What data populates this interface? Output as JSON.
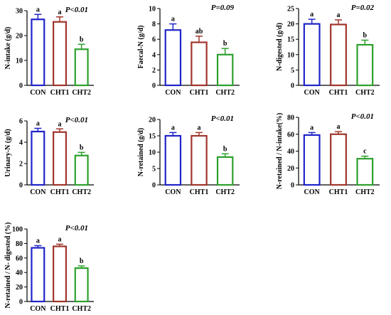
{
  "colors": {
    "CON": "#1f24c8",
    "CHT1": "#a0352b",
    "CHT2": "#2ca02c",
    "axis": "#000000"
  },
  "chart_data": [
    {
      "type": "bar",
      "ylabel": "N-intake (g/d)",
      "pvalue": "P<0.01",
      "categories": [
        "CON",
        "CHT1",
        "CHT2"
      ],
      "values": [
        26.5,
        25.5,
        14.5
      ],
      "errors": [
        2.0,
        2.0,
        2.0
      ],
      "letters": [
        "a",
        "a",
        "b"
      ],
      "ylim": [
        0,
        30
      ],
      "yticks": [
        0,
        10,
        20,
        30
      ]
    },
    {
      "type": "bar",
      "ylabel": "Faecal-N (g/d)",
      "pvalue": "P=0.09",
      "categories": [
        "CON",
        "CHT1",
        "CHT2"
      ],
      "values": [
        7.2,
        5.6,
        4.0
      ],
      "errors": [
        0.8,
        0.8,
        0.8
      ],
      "letters": [
        "a",
        "ab",
        "b"
      ],
      "ylim": [
        0,
        10
      ],
      "yticks": [
        0,
        2,
        4,
        6,
        8,
        10
      ]
    },
    {
      "type": "bar",
      "ylabel": "N-digested (g/d)",
      "pvalue": "P=0.02",
      "categories": [
        "CON",
        "CHT1",
        "CHT2"
      ],
      "values": [
        20.0,
        19.8,
        13.2
      ],
      "errors": [
        1.5,
        1.5,
        1.5
      ],
      "letters": [
        "a",
        "a",
        "b"
      ],
      "ylim": [
        0,
        25
      ],
      "yticks": [
        0,
        5,
        10,
        15,
        20,
        25
      ]
    },
    {
      "type": "bar",
      "ylabel": "Urinary-N (g/d)",
      "pvalue": "P<0.01",
      "categories": [
        "CON",
        "CHT1",
        "CHT2"
      ],
      "values": [
        5.0,
        4.95,
        2.75
      ],
      "errors": [
        0.3,
        0.3,
        0.3
      ],
      "letters": [
        "a",
        "a",
        "b"
      ],
      "ylim": [
        0,
        6
      ],
      "yticks": [
        0,
        2,
        4,
        6
      ]
    },
    {
      "type": "bar",
      "ylabel": "N-retained (g/d)",
      "pvalue": "P<0.01",
      "categories": [
        "CON",
        "CHT1",
        "CHT2"
      ],
      "values": [
        15.0,
        15.0,
        8.5
      ],
      "errors": [
        1.0,
        1.0,
        1.0
      ],
      "letters": [
        "a",
        "a",
        "b"
      ],
      "ylim": [
        0,
        20
      ],
      "yticks": [
        0,
        5,
        10,
        15,
        20
      ]
    },
    {
      "type": "bar",
      "ylabel": "N-retained / N-intake(%)",
      "pvalue": "P<0.01",
      "categories": [
        "CON",
        "CHT1",
        "CHT2"
      ],
      "values": [
        59,
        60,
        31
      ],
      "errors": [
        3,
        3,
        3
      ],
      "letters": [
        "a",
        "a",
        "c"
      ],
      "ylim": [
        0,
        80
      ],
      "yticks": [
        0,
        20,
        40,
        60,
        80
      ]
    },
    {
      "type": "bar",
      "ylabel": "N-retained / N- digested (%)",
      "pvalue": "P<0.01",
      "categories": [
        "CON",
        "CHT1",
        "CHT2"
      ],
      "values": [
        74,
        76,
        46
      ],
      "errors": [
        3,
        3,
        3
      ],
      "letters": [
        "a",
        "a",
        "b"
      ],
      "ylim": [
        0,
        100
      ],
      "yticks": [
        0,
        20,
        40,
        60,
        80,
        100
      ]
    }
  ]
}
